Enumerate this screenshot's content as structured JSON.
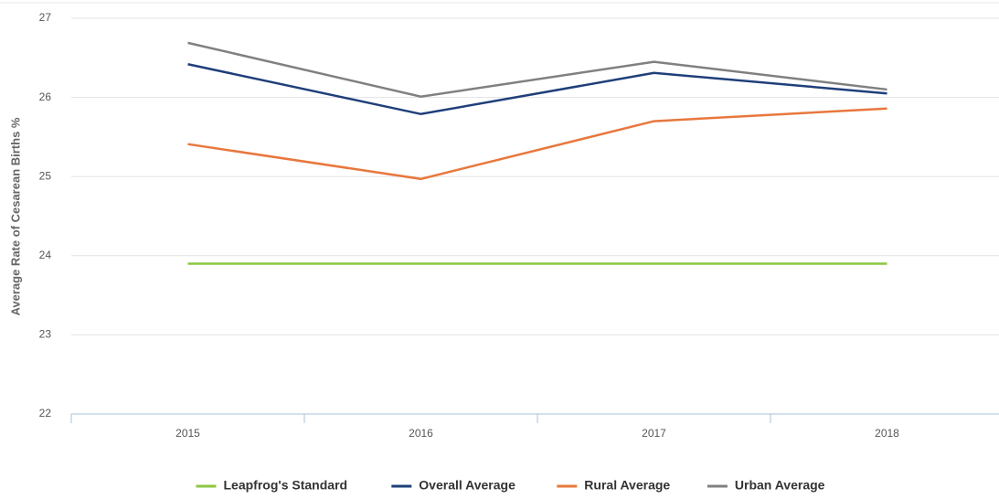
{
  "chart_data": {
    "type": "line",
    "y_label": "Average Rate of Cesarean Births %",
    "categories": [
      "2015",
      "2016",
      "2017",
      "2018"
    ],
    "series": [
      {
        "name": "Leapfrog's Standard",
        "color": "#8cc63f",
        "values": [
          23.9,
          23.9,
          23.9,
          23.9
        ]
      },
      {
        "name": "Overall Average",
        "color": "#1f3f7a",
        "values": [
          26.42,
          25.79,
          26.31,
          26.05
        ]
      },
      {
        "name": "Rural Average",
        "color": "#e8773d",
        "values": [
          25.41,
          24.97,
          25.7,
          25.86
        ]
      },
      {
        "name": "Urban Average",
        "color": "#808080",
        "values": [
          26.69,
          26.01,
          26.45,
          26.1
        ]
      }
    ],
    "ylim": [
      22,
      27
    ],
    "yticks": [
      22,
      23,
      24,
      25,
      26,
      27
    ],
    "grid": true,
    "legend": "bottom"
  }
}
